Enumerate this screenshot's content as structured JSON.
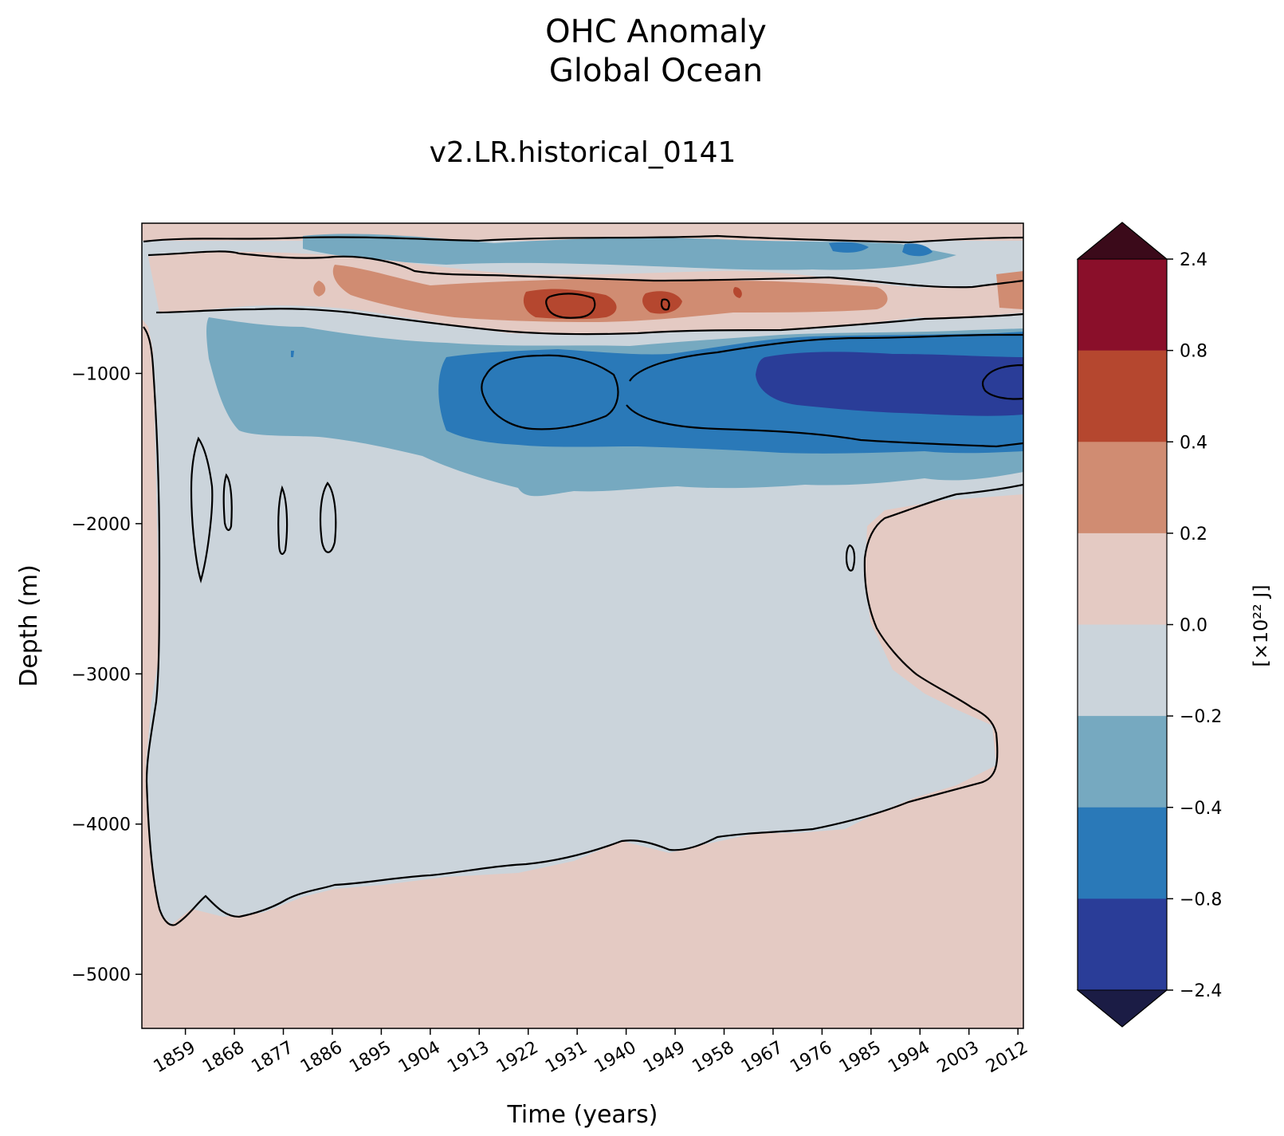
{
  "chart_data": {
    "type": "heatmap",
    "title": "OHC Anomaly",
    "subtitle": "Global Ocean",
    "run_label": "v2.LR.historical_0141",
    "xlabel": "Time (years)",
    "ylabel": "Depth (m)",
    "x_ticks": [
      "1859",
      "1868",
      "1877",
      "1886",
      "1895",
      "1904",
      "1913",
      "1922",
      "1931",
      "1940",
      "1949",
      "1958",
      "1967",
      "1976",
      "1985",
      "1994",
      "2003",
      "2012"
    ],
    "y_ticks": [
      "−1000",
      "−2000",
      "−3000",
      "−4000",
      "−5000"
    ],
    "xlim": [
      1851,
      2013
    ],
    "ylim": [
      -5360,
      0
    ],
    "contour_lines": "black contours at 0.0 and ±0.4",
    "colorbar": {
      "label": "[×10²² J]",
      "levels": [
        "2.4",
        "0.8",
        "0.4",
        "0.2",
        "0.0",
        "−0.2",
        "−0.4",
        "−0.8",
        "−2.4"
      ],
      "colors": [
        "#8a0f2a",
        "#b5472f",
        "#d08c72",
        "#e4cac3",
        "#cbd4db",
        "#76a9c0",
        "#2a79b8",
        "#2a3d98"
      ],
      "extend_colors": {
        "top": "#3b0a1a",
        "bottom": "#1b1c45"
      }
    },
    "regions": [
      {
        "desc": "positive surface band ~ -200 to -750 m",
        "value_range": "0.0 to 0.8",
        "peak_years": "1926-1934",
        "peak_value": "0.4 to 0.8"
      },
      {
        "desc": "negative band ~ -800 to -1800 m",
        "value_range": "-0.2 to -2.4",
        "peak_years": "1967-2012",
        "peak_value": "-0.8 to -2.4"
      },
      {
        "desc": "deep positive region below ~ -4300 m, rising after 1984",
        "value_range": "0.0 to 0.2"
      },
      {
        "desc": "mid-depth interior",
        "value_range": "-0.2 to 0.0"
      }
    ]
  }
}
